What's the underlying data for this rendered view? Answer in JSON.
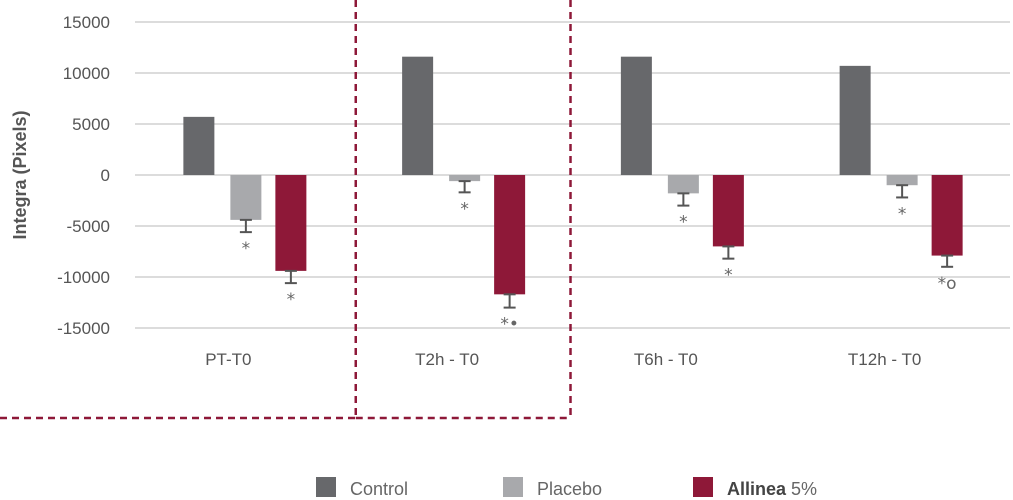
{
  "chart_data": {
    "type": "bar",
    "ylabel": "Integra (Pixels)",
    "ylim": [
      -15000,
      15000
    ],
    "yticks": [
      15000,
      10000,
      5000,
      0,
      -5000,
      -10000,
      -15000
    ],
    "categories": [
      "PT-T0",
      "T2h - T0",
      "T6h - T0",
      "T12h - T0"
    ],
    "series": [
      {
        "name": "Control",
        "color": "#67686b",
        "values": [
          5700,
          11600,
          11600,
          10700
        ]
      },
      {
        "name": "Placebo",
        "color": "#a8a9ac",
        "values": [
          -4400,
          -600,
          -1800,
          -1000
        ],
        "errors": [
          1200,
          1100,
          1200,
          1200
        ],
        "markers": [
          "*",
          "*",
          "*",
          "*"
        ]
      },
      {
        "name": "Allinea",
        "legend_suffix": "5%",
        "color": "#8e1838",
        "values": [
          -9400,
          -11700,
          -7000,
          -7900
        ],
        "errors": [
          1200,
          1300,
          1200,
          1100
        ],
        "markers": [
          "*",
          "*•",
          "*",
          "*o"
        ]
      }
    ],
    "grid": true,
    "legend_position": "bottom-center",
    "highlight_category": "T2h - T0",
    "highlight_color": "#8e1838"
  }
}
